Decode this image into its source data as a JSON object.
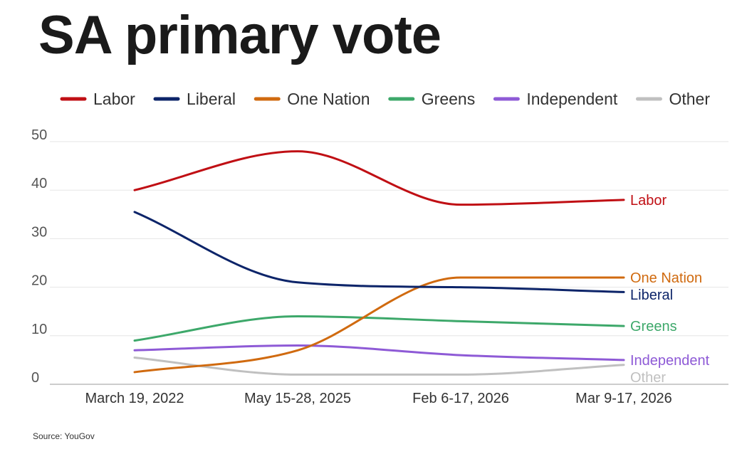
{
  "header": {
    "title": "SA primary vote"
  },
  "footer": {
    "source": "Source: YouGov"
  },
  "chart_data": {
    "type": "line",
    "title": "SA primary vote",
    "xlabel": "",
    "ylabel": "",
    "categories": [
      "March 19, 2022",
      "May 15-28, 2025",
      "Feb 6-17, 2026",
      "Mar 9-17, 2026"
    ],
    "ylim": [
      0,
      50
    ],
    "yticks": [
      0,
      10,
      20,
      30,
      40,
      50
    ],
    "grid": true,
    "legend_position": "top",
    "series": [
      {
        "name": "Labor",
        "color": "#c00f14",
        "values": [
          40,
          48,
          37,
          38
        ]
      },
      {
        "name": "Liberal",
        "color": "#0c2469",
        "values": [
          35.5,
          21,
          20,
          19
        ]
      },
      {
        "name": "One Nation",
        "color": "#d06a0f",
        "values": [
          2.5,
          7,
          22,
          22
        ]
      },
      {
        "name": "Greens",
        "color": "#3da86a",
        "values": [
          9,
          14,
          13,
          12
        ]
      },
      {
        "name": "Independent",
        "color": "#8e5ad6",
        "values": [
          7,
          8,
          6,
          5
        ]
      },
      {
        "name": "Other",
        "color": "#c0c0c0",
        "values": [
          5.5,
          2,
          2,
          4
        ]
      }
    ]
  }
}
